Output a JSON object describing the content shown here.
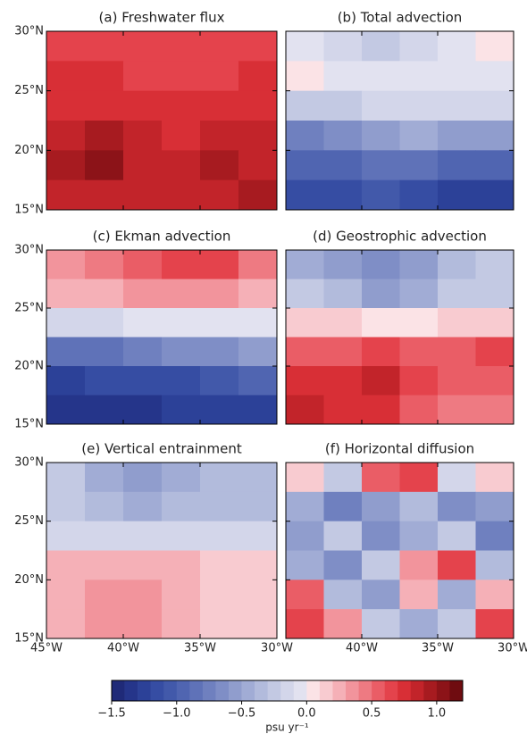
{
  "chart_data": [
    {
      "type": "heatmap",
      "title": "(a) Freshwater flux",
      "x": [
        -43.75,
        -41.25,
        -38.75,
        -36.25,
        -33.75,
        -31.25
      ],
      "y": [
        28.75,
        26.25,
        23.75,
        21.25,
        18.75,
        16.25
      ],
      "z": [
        [
          0.6,
          0.65,
          0.65,
          0.6,
          0.6,
          0.6
        ],
        [
          0.7,
          0.7,
          0.65,
          0.65,
          0.65,
          0.7
        ],
        [
          0.75,
          0.75,
          0.7,
          0.7,
          0.7,
          0.75
        ],
        [
          0.85,
          0.95,
          0.8,
          0.75,
          0.85,
          0.85
        ],
        [
          0.95,
          1.0,
          0.85,
          0.8,
          0.9,
          0.85
        ],
        [
          0.85,
          0.85,
          0.8,
          0.8,
          0.85,
          0.95
        ]
      ],
      "xlim": [
        -45,
        -30
      ],
      "ylim": [
        15,
        30
      ],
      "xticks": [
        -45,
        -40,
        -35,
        -30
      ],
      "yticks": [
        {
          "value": 15,
          "label": "15°N"
        },
        {
          "value": 20,
          "label": "20°N"
        },
        {
          "value": 25,
          "label": "25°N"
        },
        {
          "value": 30,
          "label": "30°N"
        }
      ]
    },
    {
      "type": "heatmap",
      "title": "(b) Total advection",
      "x": [
        -43.75,
        -41.25,
        -38.75,
        -36.25,
        -33.75,
        -31.25
      ],
      "y": [
        28.75,
        26.25,
        23.75,
        21.25,
        18.75,
        16.25
      ],
      "z": [
        [
          -0.1,
          -0.2,
          -0.3,
          -0.2,
          -0.1,
          0.05
        ],
        [
          0.0,
          -0.1,
          -0.1,
          -0.1,
          -0.1,
          -0.1
        ],
        [
          -0.3,
          -0.3,
          -0.2,
          -0.2,
          -0.2,
          -0.2
        ],
        [
          -0.8,
          -0.7,
          -0.6,
          -0.5,
          -0.6,
          -0.6
        ],
        [
          -1.0,
          -1.0,
          -0.9,
          -0.9,
          -1.0,
          -1.0
        ],
        [
          -1.2,
          -1.2,
          -1.1,
          -1.2,
          -1.3,
          -1.3
        ]
      ],
      "xlim": [
        -45,
        -30
      ],
      "ylim": [
        15,
        30
      ],
      "xticks": [
        -45,
        -40,
        -35,
        -30
      ],
      "yticks": [
        15,
        20,
        25,
        30
      ]
    },
    {
      "type": "heatmap",
      "title": "(c) Ekman advection",
      "x": [
        -43.75,
        -41.25,
        -38.75,
        -36.25,
        -33.75,
        -31.25
      ],
      "y": [
        28.75,
        26.25,
        23.75,
        21.25,
        18.75,
        16.25
      ],
      "z": [
        [
          0.3,
          0.4,
          0.5,
          0.6,
          0.6,
          0.4
        ],
        [
          0.2,
          0.25,
          0.3,
          0.3,
          0.3,
          0.2
        ],
        [
          -0.2,
          -0.2,
          -0.1,
          -0.1,
          -0.05,
          -0.05
        ],
        [
          -0.9,
          -0.9,
          -0.8,
          -0.7,
          -0.7,
          -0.6
        ],
        [
          -1.3,
          -1.2,
          -1.2,
          -1.2,
          -1.1,
          -1.0
        ],
        [
          -1.4,
          -1.4,
          -1.4,
          -1.3,
          -1.3,
          -1.3
        ]
      ],
      "xlim": [
        -45,
        -30
      ],
      "ylim": [
        15,
        30
      ],
      "xticks": [
        -45,
        -40,
        -35,
        -30
      ],
      "yticks": [
        {
          "value": 15,
          "label": "15°N"
        },
        {
          "value": 20,
          "label": "20°N"
        },
        {
          "value": 25,
          "label": "25°N"
        },
        {
          "value": 30,
          "label": "30°N"
        }
      ]
    },
    {
      "type": "heatmap",
      "title": "(d) Geostrophic advection",
      "x": [
        -43.75,
        -41.25,
        -38.75,
        -36.25,
        -33.75,
        -31.25
      ],
      "y": [
        28.75,
        26.25,
        23.75,
        21.25,
        18.75,
        16.25
      ],
      "z": [
        [
          -0.5,
          -0.6,
          -0.7,
          -0.6,
          -0.4,
          -0.3
        ],
        [
          -0.3,
          -0.4,
          -0.6,
          -0.5,
          -0.3,
          -0.3
        ],
        [
          0.1,
          0.1,
          0.05,
          0.05,
          0.1,
          0.1
        ],
        [
          0.5,
          0.5,
          0.6,
          0.5,
          0.5,
          0.6
        ],
        [
          0.7,
          0.7,
          0.8,
          0.6,
          0.5,
          0.5
        ],
        [
          0.8,
          0.7,
          0.7,
          0.5,
          0.4,
          0.4
        ]
      ],
      "xlim": [
        -45,
        -30
      ],
      "ylim": [
        15,
        30
      ],
      "xticks": [
        -45,
        -40,
        -35,
        -30
      ],
      "yticks": [
        15,
        20,
        25,
        30
      ]
    },
    {
      "type": "heatmap",
      "title": "(e) Vertical entrainment",
      "x": [
        -43.75,
        -41.25,
        -38.75,
        -36.25,
        -33.75,
        -31.25
      ],
      "y": [
        28.75,
        26.25,
        23.75,
        21.25,
        18.75,
        16.25
      ],
      "z": [
        [
          -0.3,
          -0.5,
          -0.6,
          -0.5,
          -0.4,
          -0.4
        ],
        [
          -0.3,
          -0.4,
          -0.5,
          -0.4,
          -0.4,
          -0.4
        ],
        [
          -0.2,
          -0.2,
          -0.2,
          -0.2,
          -0.15,
          -0.15
        ],
        [
          0.2,
          0.2,
          0.25,
          0.2,
          0.1,
          0.1
        ],
        [
          0.2,
          0.3,
          0.3,
          0.2,
          0.1,
          0.1
        ],
        [
          0.2,
          0.3,
          0.3,
          0.2,
          0.1,
          0.1
        ]
      ],
      "xlim": [
        -45,
        -30
      ],
      "ylim": [
        15,
        30
      ],
      "xticks": [
        {
          "value": -45,
          "label": "45°W"
        },
        {
          "value": -40,
          "label": "40°W"
        },
        {
          "value": -35,
          "label": "35°W"
        },
        {
          "value": -30,
          "label": "30°W"
        }
      ],
      "yticks": [
        {
          "value": 15,
          "label": "15°N"
        },
        {
          "value": 20,
          "label": "20°N"
        },
        {
          "value": 25,
          "label": "25°N"
        },
        {
          "value": 30,
          "label": "30°N"
        }
      ]
    },
    {
      "type": "heatmap",
      "title": "(f) Horizontal diffusion",
      "x": [
        -43.75,
        -41.25,
        -38.75,
        -36.25,
        -33.75,
        -31.25
      ],
      "y": [
        28.75,
        26.25,
        23.75,
        21.25,
        18.75,
        16.25
      ],
      "z": [
        [
          0.1,
          -0.3,
          0.5,
          0.6,
          -0.2,
          0.1
        ],
        [
          -0.5,
          -0.8,
          -0.6,
          -0.4,
          -0.7,
          -0.6
        ],
        [
          -0.6,
          -0.3,
          -0.7,
          -0.5,
          -0.3,
          -0.8
        ],
        [
          -0.5,
          -0.7,
          -0.3,
          0.3,
          0.6,
          -0.4
        ],
        [
          0.5,
          -0.4,
          -0.6,
          0.2,
          -0.5,
          0.2
        ],
        [
          0.6,
          0.3,
          -0.3,
          -0.5,
          -0.3,
          0.6
        ]
      ],
      "xlim": [
        -45,
        -30
      ],
      "ylim": [
        15,
        30
      ],
      "xticks": [
        -45,
        {
          "value": -40,
          "label": "40°W"
        },
        {
          "value": -35,
          "label": "35°W"
        },
        {
          "value": -30,
          "label": "30°W"
        }
      ],
      "yticks": [
        15,
        20,
        25,
        30
      ]
    }
  ],
  "colorbar": {
    "clim": [
      -1.5,
      1.2
    ],
    "colors": [
      "#1f2a78",
      "#25358a",
      "#2c4198",
      "#364da3",
      "#4259aa",
      "#5065b1",
      "#5f72b8",
      "#6f80bf",
      "#7f8ec6",
      "#909dcd",
      "#a1acd5",
      "#b2bbdc",
      "#c3c9e3",
      "#d3d6ea",
      "#e2e2f0",
      "#fbe3e6",
      "#f8cbd0",
      "#f5b0b7",
      "#f2949c",
      "#ee7a82",
      "#ea5d66",
      "#e4434c",
      "#d82f36",
      "#c2242a",
      "#a71b20",
      "#8c1318",
      "#6f0c10"
    ],
    "ticks": [
      {
        "value": -1.5,
        "label": "−1.5"
      },
      {
        "value": -1.0,
        "label": "−1.0"
      },
      {
        "value": -0.5,
        "label": "−0.5"
      },
      {
        "value": 0.0,
        "label": "0.0"
      },
      0.5,
      {
        "value": 1.0,
        "label": "1.0"
      }
    ],
    "label": "psu yr⁻¹"
  }
}
